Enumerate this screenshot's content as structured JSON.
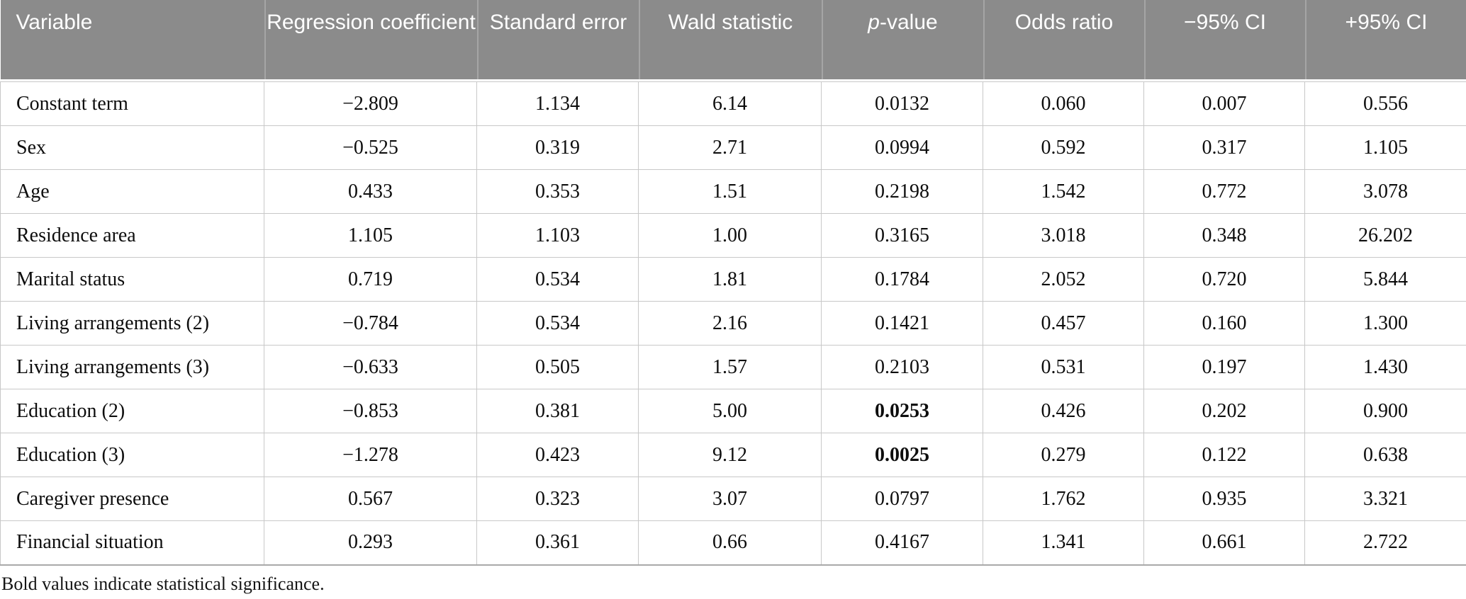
{
  "colors": {
    "header_bg": "#8b8b8b",
    "header_text": "#ffffff",
    "header_separator": "#a5a5a5",
    "body_border": "#c8c8c8",
    "table_bottom_border": "#a9a9a9",
    "body_text": "#0d0d0d"
  },
  "table": {
    "columns": [
      {
        "label": "Variable",
        "align": "left"
      },
      {
        "label": "Regression coefficient",
        "align": "center"
      },
      {
        "label": "Standard error",
        "align": "center"
      },
      {
        "label": "Wald statistic",
        "align": "center"
      },
      {
        "label": "p-value",
        "italic_part": "p",
        "rest_part": "-value",
        "align": "center"
      },
      {
        "label": "Odds ratio",
        "align": "center"
      },
      {
        "label": "−95% CI",
        "align": "center"
      },
      {
        "label": "+95% CI",
        "align": "center"
      }
    ],
    "rows": [
      {
        "variable": "Constant term",
        "values": [
          "−2.809",
          "1.134",
          "6.14",
          "0.0132",
          "0.060",
          "0.007",
          "0.556"
        ],
        "bold": []
      },
      {
        "variable": "Sex",
        "values": [
          "−0.525",
          "0.319",
          "2.71",
          "0.0994",
          "0.592",
          "0.317",
          "1.105"
        ],
        "bold": []
      },
      {
        "variable": "Age",
        "values": [
          "0.433",
          "0.353",
          "1.51",
          "0.2198",
          "1.542",
          "0.772",
          "3.078"
        ],
        "bold": []
      },
      {
        "variable": "Residence area",
        "values": [
          "1.105",
          "1.103",
          "1.00",
          "0.3165",
          "3.018",
          "0.348",
          "26.202"
        ],
        "bold": []
      },
      {
        "variable": "Marital status",
        "values": [
          "0.719",
          "0.534",
          "1.81",
          "0.1784",
          "2.052",
          "0.720",
          "5.844"
        ],
        "bold": []
      },
      {
        "variable": "Living arrangements (2)",
        "values": [
          "−0.784",
          "0.534",
          "2.16",
          "0.1421",
          "0.457",
          "0.160",
          "1.300"
        ],
        "bold": []
      },
      {
        "variable": "Living arrangements (3)",
        "values": [
          "−0.633",
          "0.505",
          "1.57",
          "0.2103",
          "0.531",
          "0.197",
          "1.430"
        ],
        "bold": []
      },
      {
        "variable": "Education (2)",
        "values": [
          "−0.853",
          "0.381",
          "5.00",
          "0.0253",
          "0.426",
          "0.202",
          "0.900"
        ],
        "bold": [
          3
        ]
      },
      {
        "variable": "Education (3)",
        "values": [
          "−1.278",
          "0.423",
          "9.12",
          "0.0025",
          "0.279",
          "0.122",
          "0.638"
        ],
        "bold": [
          3
        ]
      },
      {
        "variable": "Caregiver presence",
        "values": [
          "0.567",
          "0.323",
          "3.07",
          "0.0797",
          "1.762",
          "0.935",
          "3.321"
        ],
        "bold": []
      },
      {
        "variable": "Financial situation",
        "values": [
          "0.293",
          "0.361",
          "0.66",
          "0.4167",
          "1.341",
          "0.661",
          "2.722"
        ],
        "bold": []
      }
    ],
    "footnote": "Bold values indicate statistical significance."
  }
}
